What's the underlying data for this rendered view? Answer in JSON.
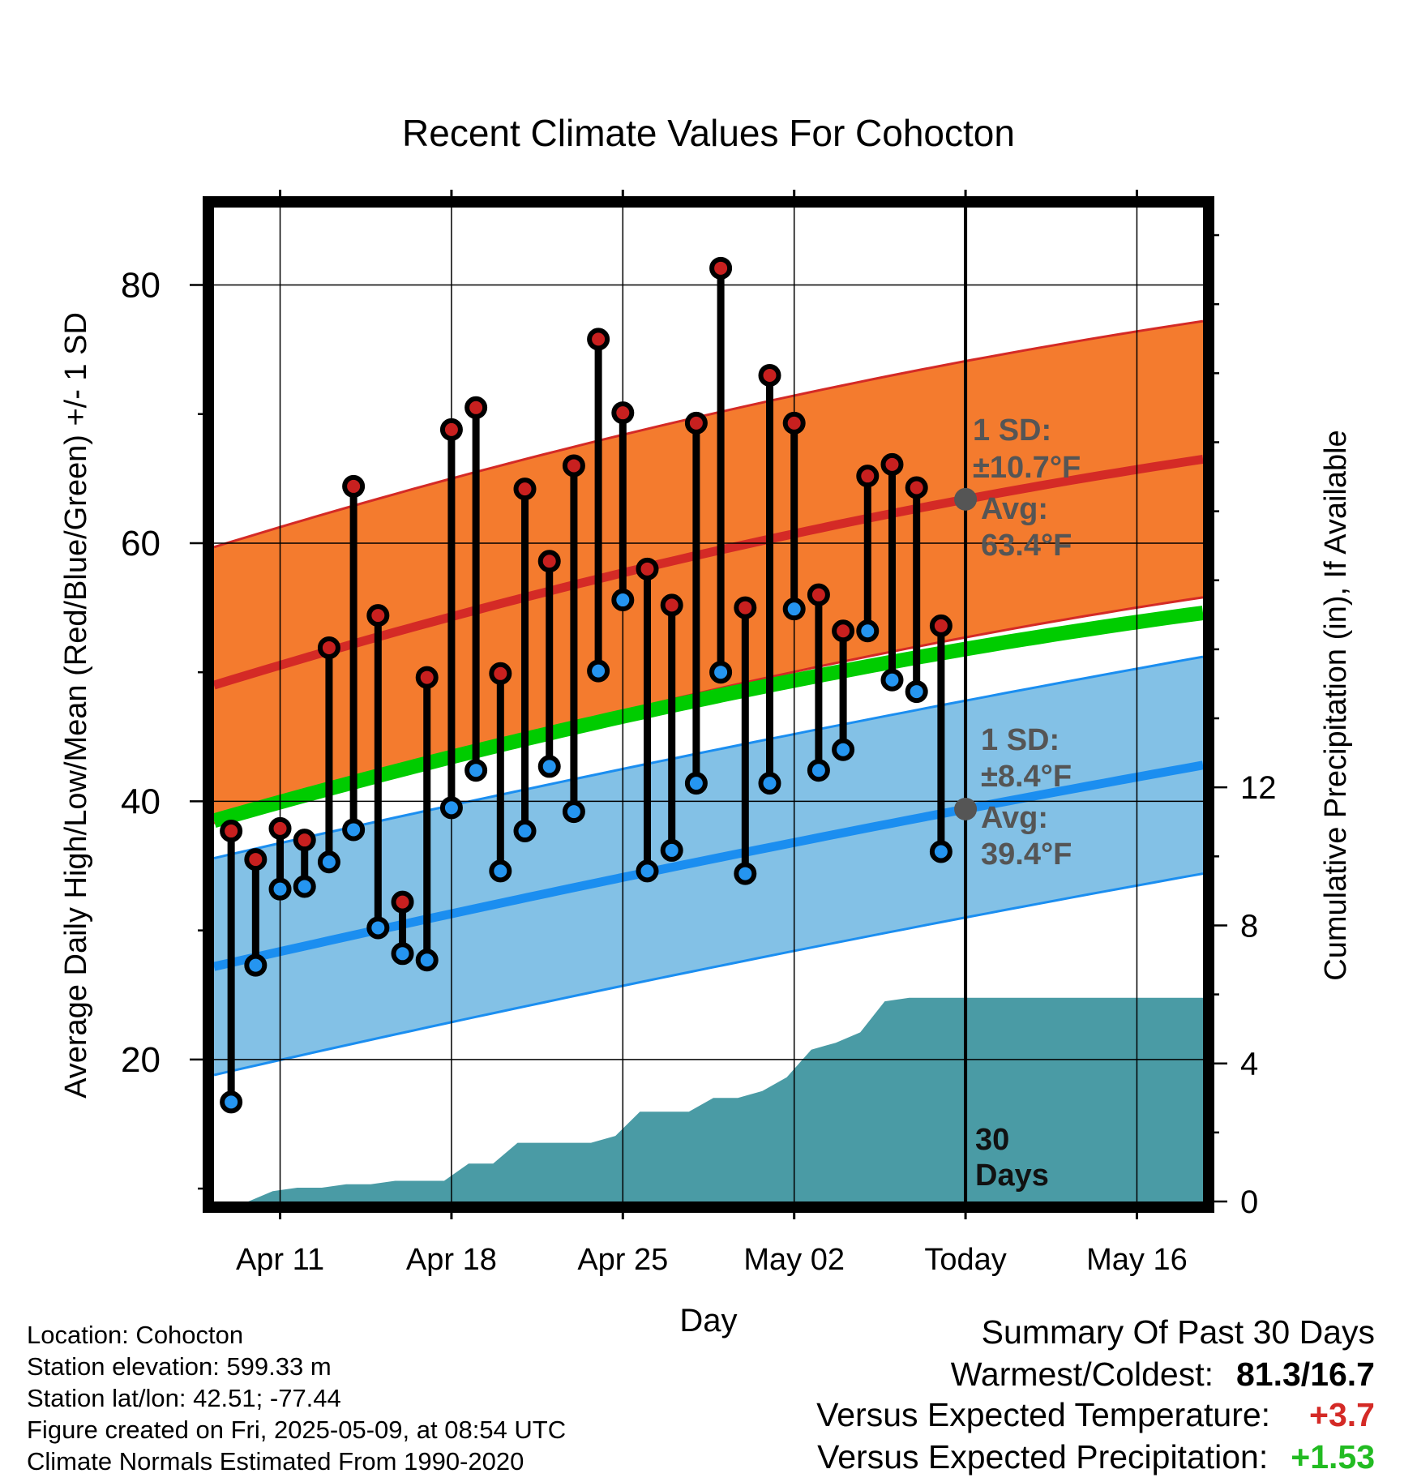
{
  "chart_data": {
    "type": "line",
    "title": "Recent Climate Values For Cohocton",
    "xlabel": "Day",
    "ylabel": "Average Daily High/Low/Mean (Red/Blue/Green) +/- 1 SD",
    "y2label": "Cumulative Precipitation (in), If Available",
    "ylim": [
      9,
      86
    ],
    "y2lim": [
      0,
      28.8
    ],
    "x_tick_labels": [
      "Apr 11",
      "Apr 18",
      "Apr 25",
      "May 02",
      "Today",
      "May 16"
    ],
    "x_tick_days": [
      3,
      10,
      17,
      24,
      31,
      38
    ],
    "y_ticks": [
      20,
      40,
      60,
      80
    ],
    "y2_ticks": [
      0,
      4,
      8,
      12
    ],
    "xlim": [
      0.3,
      40.7
    ],
    "grid": true,
    "days": [
      1,
      2,
      3,
      4,
      5,
      6,
      7,
      8,
      9,
      10,
      11,
      12,
      13,
      14,
      15,
      16,
      17,
      18,
      19,
      20,
      21,
      22,
      23,
      24,
      25,
      26,
      27,
      28,
      29,
      30
    ],
    "observed_high": [
      37.7,
      35.5,
      37.9,
      37.0,
      51.9,
      64.4,
      54.4,
      32.2,
      49.6,
      68.8,
      70.5,
      49.9,
      64.2,
      58.6,
      66.0,
      75.8,
      70.1,
      58.0,
      55.2,
      69.3,
      81.3,
      55.0,
      73.0,
      69.3,
      56.0,
      53.2,
      65.2,
      66.1,
      64.3,
      53.6
    ],
    "observed_low": [
      16.7,
      27.3,
      33.2,
      33.4,
      35.3,
      37.8,
      30.2,
      28.2,
      27.7,
      39.5,
      42.4,
      34.6,
      37.7,
      42.7,
      39.2,
      50.1,
      55.6,
      34.6,
      36.2,
      41.4,
      50.0,
      34.4,
      41.4,
      54.9,
      42.4,
      44.0,
      53.2,
      49.4,
      48.5,
      36.1
    ],
    "normal_high_avg": {
      "day_start": 0.3,
      "start": 49.0,
      "today_day": 31,
      "today": 63.4,
      "day_end": 40.7,
      "end": 66.5
    },
    "normal_high_sd": 10.7,
    "normal_low_avg": {
      "day_start": 0.3,
      "start": 27.2,
      "today_day": 31,
      "today": 39.4,
      "day_end": 40.7,
      "end": 42.8
    },
    "normal_low_sd": 8.4,
    "normal_mean": {
      "day_start": 0.3,
      "start": 38.5,
      "today_day": 31,
      "today": 51.8,
      "day_end": 40.7,
      "end": 54.6
    },
    "precip_cumulative": {
      "days": [
        0.3,
        1.7,
        2.7,
        3.7,
        4.7,
        5.7,
        6.7,
        7.7,
        8.7,
        9.7,
        10.7,
        11.7,
        12.7,
        13.7,
        14.7,
        15.7,
        16.7,
        17.7,
        18.7,
        19.7,
        20.7,
        21.7,
        22.7,
        23.7,
        24.7,
        25.7,
        26.7,
        27.7,
        28.7,
        29.7,
        40.7
      ],
      "values": [
        0,
        0,
        0.3,
        0.4,
        0.4,
        0.5,
        0.5,
        0.6,
        0.6,
        0.6,
        1.1,
        1.1,
        1.7,
        1.7,
        1.7,
        1.7,
        1.9,
        2.6,
        2.6,
        2.6,
        3.0,
        3.0,
        3.2,
        3.6,
        4.4,
        4.6,
        4.9,
        5.8,
        5.9,
        5.9,
        5.9
      ]
    },
    "colors": {
      "high_band": "#f47b2e",
      "high_line": "#d42a26",
      "low_band": "#83c1e6",
      "low_line": "#1b8ef0",
      "mean_line": "#00cc00",
      "precip": "#4a9ba5",
      "high_marker": "#c8201f",
      "low_marker": "#2595f0",
      "annotation": "#555555"
    }
  },
  "annotations": {
    "high_sd_label": "1 SD:",
    "high_sd_value": "±10.7°F",
    "high_avg_label": "Avg:",
    "high_avg_value": "63.4°F",
    "low_sd_label": "1 SD:",
    "low_sd_value": "±8.4°F",
    "low_avg_label": "Avg:",
    "low_avg_value": "39.4°F",
    "days_number": "30",
    "days_word": "Days"
  },
  "info": {
    "location": "Location: Cohocton",
    "elevation": "Station elevation: 599.33 m",
    "latlon": "Station lat/lon: 42.51; -77.44",
    "created": "Figure created on Fri, 2025-05-09, at 08:54 UTC",
    "normals": "Climate Normals Estimated From 1990-2020"
  },
  "summary": {
    "title": "Summary Of Past 30 Days",
    "warm_cold_label": "Warmest/Coldest:",
    "warm_cold_value": "81.3/16.7",
    "temp_label": "Versus Expected Temperature:",
    "temp_value": "+3.7",
    "temp_color": "#d42a26",
    "precip_label": "Versus Expected Precipitation:",
    "precip_value": "+1.53",
    "precip_color": "#22bb22"
  }
}
